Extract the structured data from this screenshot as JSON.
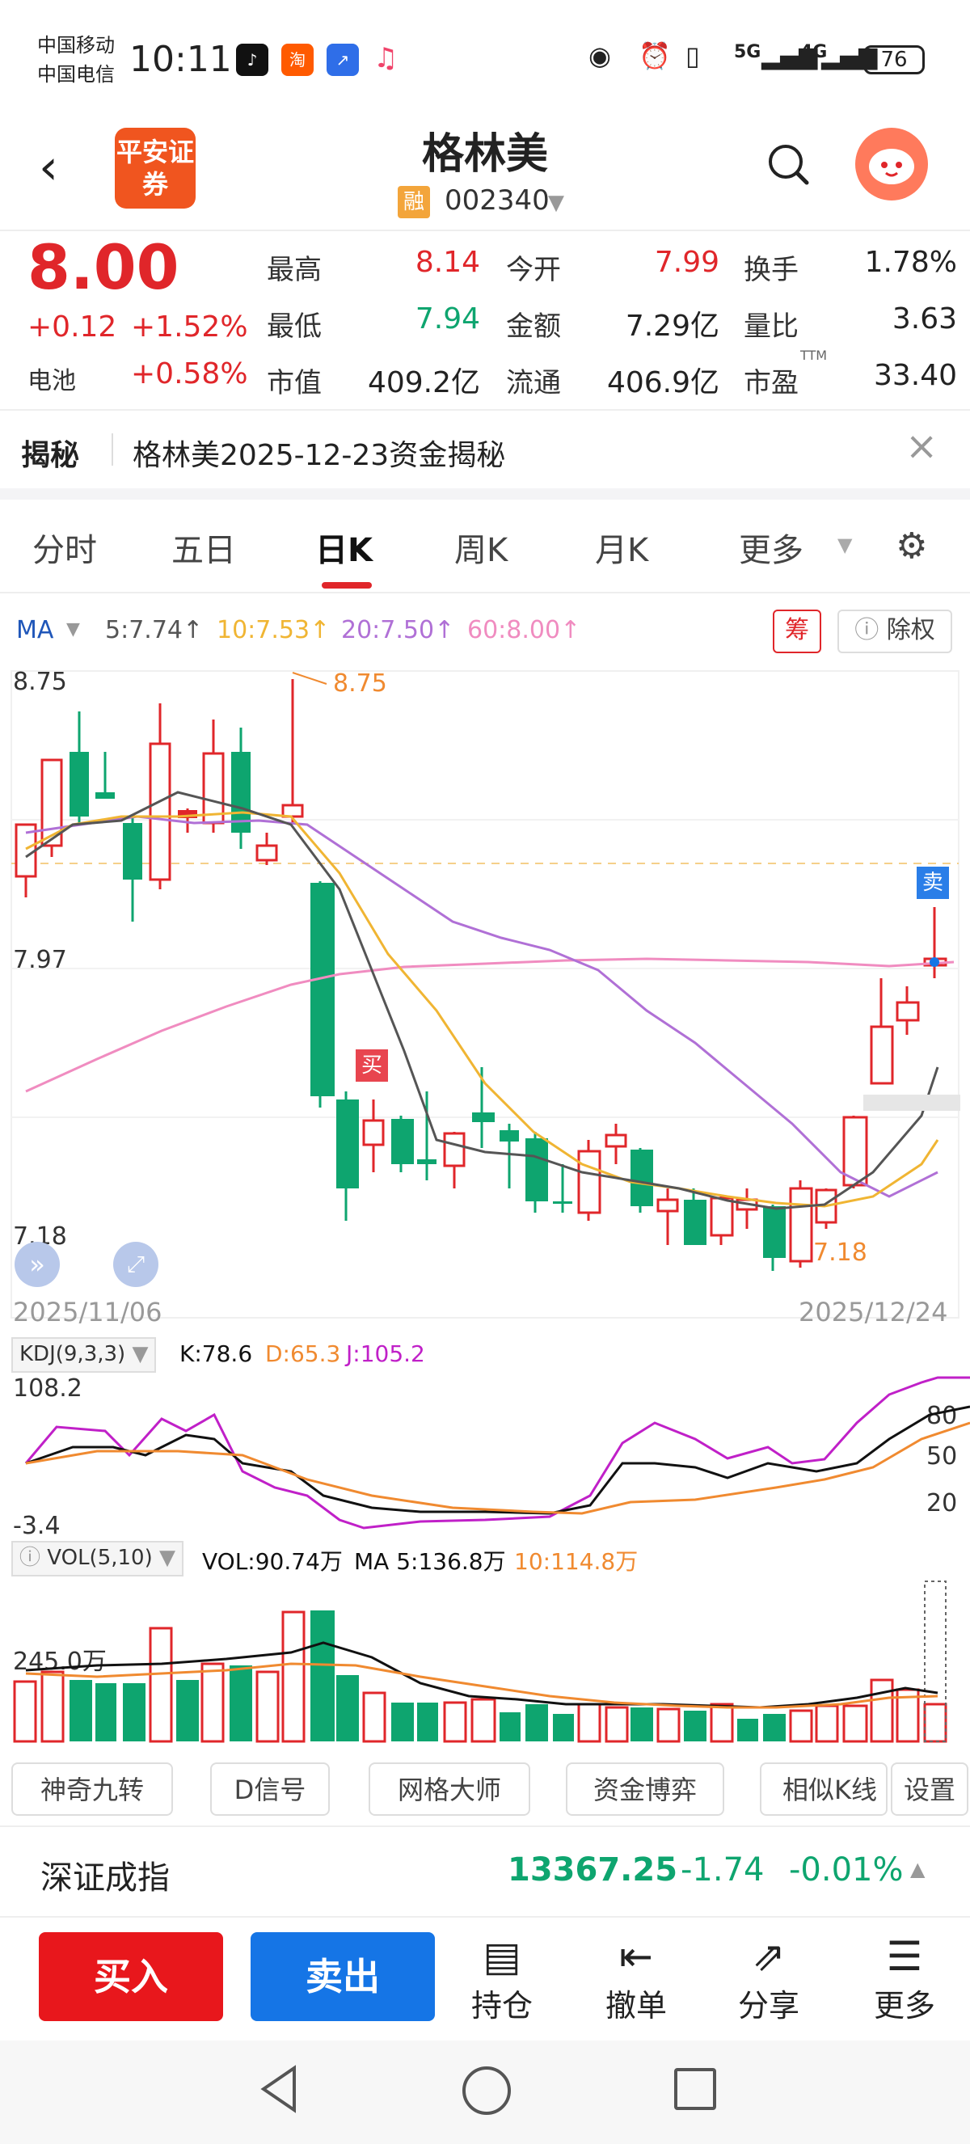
{
  "status_bar": {
    "carrier_1": "中国移动",
    "carrier_2": "中国电信",
    "time": "10:11",
    "network_1": "5G",
    "network_2": "4G",
    "battery": "76"
  },
  "header": {
    "broker_logo": "平安证券",
    "title": "格林美",
    "margin_badge": "融",
    "code": "002340"
  },
  "quote": {
    "price": "8.00",
    "change": "+0.12",
    "change_pct": "+1.52%",
    "sector_label": "电池",
    "sector_pct": "+0.58%",
    "high_label": "最高",
    "high": "8.14",
    "low_label": "最低",
    "low": "7.94",
    "cap_label": "市值",
    "cap": "409.2亿",
    "open_label": "今开",
    "open": "7.99",
    "amount_label": "金额",
    "amount": "7.29亿",
    "float_label": "流通",
    "float": "406.9亿",
    "turnover_label": "换手",
    "turnover": "1.78%",
    "vol_ratio_label": "量比",
    "vol_ratio": "3.63",
    "pe_label": "市盈",
    "pe_tag": "TTM",
    "pe": "33.40"
  },
  "reveal": {
    "label": "揭秘",
    "text": "格林美2025-12-23资金揭秘"
  },
  "tabs": [
    "分时",
    "五日",
    "日K",
    "周K",
    "月K",
    "更多"
  ],
  "ma": {
    "label": "MA",
    "ma5": "5:7.74↑",
    "ma10": "10:7.53↑",
    "ma20": "20:7.50↑",
    "ma60": "60:8.00↑",
    "chip_label": "筹",
    "exright_label": "除权"
  },
  "kline": {
    "y_high": "8.75",
    "y_mid": "7.97",
    "y_low": "7.18",
    "max_marker": "8.75",
    "min_marker": "7.18",
    "buy_tag": "买",
    "sell_tag": "卖",
    "date_start": "2025/11/06",
    "date_end": "2025/12/24"
  },
  "kdj": {
    "label": "KDJ(9,3,3)",
    "k": "K:78.6",
    "d": "D:65.3",
    "j": "J:105.2",
    "top": "108.2",
    "bottom": "-3.4",
    "lv80": "80",
    "lv50": "50",
    "lv20": "20"
  },
  "vol": {
    "label": "VOL(5,10)",
    "vol": "VOL:90.74万",
    "ma5": "MA 5:136.8万",
    "ma10": "10:114.8万",
    "scale": "245.0万"
  },
  "tools": [
    "神奇九转",
    "D信号",
    "网格大师",
    "资金博弈",
    "相似K线",
    "设置"
  ],
  "index": {
    "name": "深证成指",
    "value": "13367.25",
    "change": "-1.74",
    "pct": "-0.01%"
  },
  "actions": {
    "buy": "买入",
    "sell": "卖出",
    "hold": "持仓",
    "cancel": "撤单",
    "share": "分享",
    "more": "更多"
  },
  "colors": {
    "up": "#e0262a",
    "down": "#0ea56f",
    "ma5": "#555555",
    "ma10": "#f0b533",
    "ma20": "#b070d6",
    "ma60": "#f08cc0",
    "buy_button": "#e8171c",
    "sell_button": "#1575e6"
  }
}
